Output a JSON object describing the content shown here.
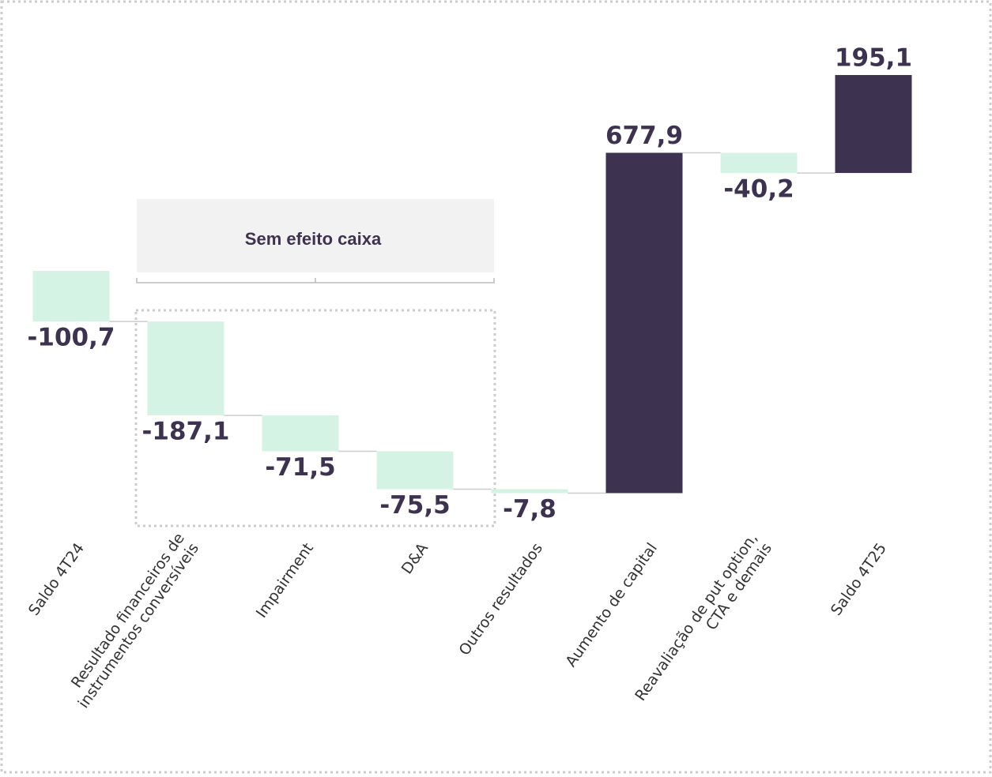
{
  "chart_data": {
    "type": "waterfall",
    "categories": [
      "Saldo 4T24",
      "Resultado financeiros de\ninstrumentos conversíveis",
      "Impairment",
      "D&A",
      "Outros resultados",
      "Aumento de capital",
      "Reavaliação de put option,\nCTA e demais",
      "Saldo 4T25"
    ],
    "values": [
      -100.7,
      -187.1,
      -71.5,
      -75.5,
      -7.8,
      677.9,
      -40.2,
      195.1
    ],
    "value_labels": [
      "-100,7",
      "-187,1",
      "-71,5",
      "-75,5",
      "-7,8",
      "677,9",
      "-40,2",
      "195,1"
    ],
    "increasing_color": "#3d3350",
    "decreasing_color": "#d5f3e4",
    "ylim": [
      -500,
      450
    ],
    "annotation": "Sem efeito caixa"
  }
}
